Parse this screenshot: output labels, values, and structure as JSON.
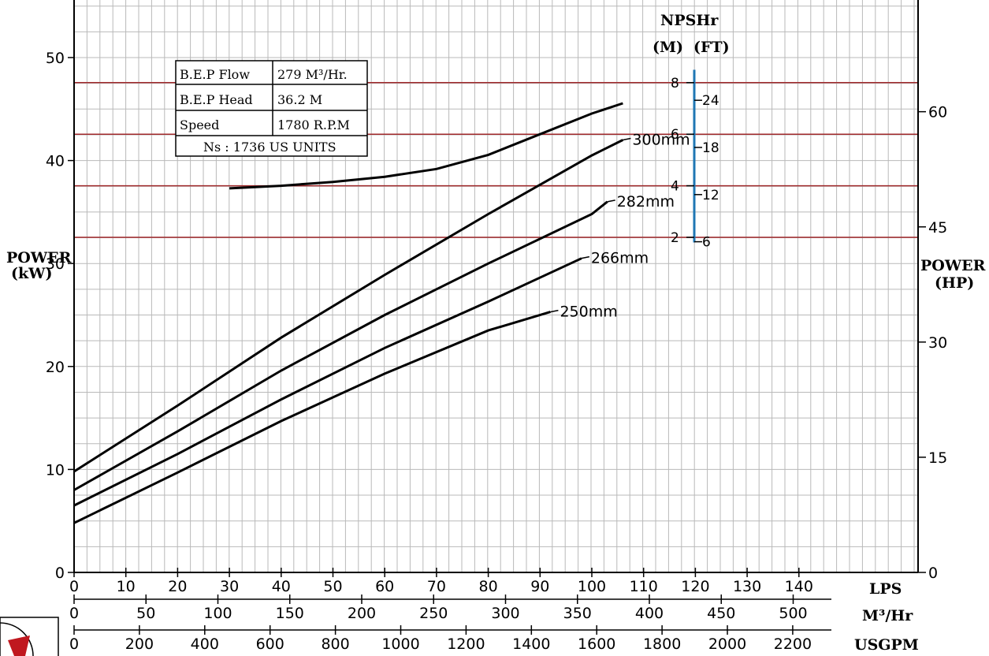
{
  "chart_data": {
    "type": "line",
    "title": "",
    "info_box": {
      "rows": [
        {
          "label": "B.E.P Flow",
          "value": "279 M³/Hr."
        },
        {
          "label": "B.E.P Head",
          "value": "36.2 M"
        },
        {
          "label": "Speed",
          "value": "1780 R.P.M"
        }
      ],
      "footer": "Ns : 1736 US UNITS"
    },
    "npshr_panel": {
      "title": "NPSHr",
      "unit_m": "(M)",
      "unit_ft": "(FT)",
      "m_ticks": [
        2,
        4,
        6,
        8
      ],
      "ft_ticks": [
        6,
        12,
        18,
        24
      ],
      "m_range": [
        1.8,
        8.5
      ],
      "reference_lines_m": [
        2,
        4,
        6,
        8
      ],
      "line_color": "#1f77b4",
      "ref_line_color": "#a0292b"
    },
    "npshr_curve": {
      "name": "",
      "x_lps": [
        30,
        40,
        50,
        60,
        70,
        80,
        90,
        100,
        106
      ],
      "y_m": [
        3.9,
        4.0,
        4.15,
        4.35,
        4.65,
        5.2,
        6.0,
        6.8,
        7.2
      ]
    },
    "power_axis_left": {
      "label_line1": "POWER",
      "label_line2": "(kW)",
      "ticks": [
        0,
        10,
        20,
        30,
        40,
        50
      ],
      "range": [
        0,
        50
      ]
    },
    "power_axis_right": {
      "label_line1": "POWER",
      "label_line2": "(HP)",
      "ticks": [
        0,
        15,
        30,
        45,
        60
      ]
    },
    "x_axes": [
      {
        "label": "LPS",
        "ticks": [
          0,
          10,
          20,
          30,
          40,
          50,
          60,
          70,
          80,
          90,
          100,
          110,
          120,
          130,
          140
        ]
      },
      {
        "label": "M³/Hr",
        "ticks": [
          0,
          50,
          100,
          150,
          200,
          250,
          300,
          350,
          400,
          450,
          500
        ]
      },
      {
        "label": "USGPM",
        "ticks": [
          0,
          200,
          400,
          600,
          800,
          1000,
          1200,
          1400,
          1600,
          1800,
          2000,
          2200
        ]
      }
    ],
    "x_range_lps": [
      0,
      140
    ],
    "grid": true,
    "series": [
      {
        "name": "300mm",
        "x": [
          0,
          20,
          40,
          60,
          80,
          100,
          106
        ],
        "y": [
          9.8,
          16.2,
          22.8,
          28.9,
          34.8,
          40.5,
          42.0
        ]
      },
      {
        "name": "282mm",
        "x": [
          0,
          20,
          40,
          60,
          80,
          100,
          103
        ],
        "y": [
          8.0,
          13.7,
          19.6,
          25.0,
          30.0,
          34.8,
          36.0
        ]
      },
      {
        "name": "266mm",
        "x": [
          0,
          20,
          40,
          60,
          80,
          98
        ],
        "y": [
          6.5,
          11.5,
          16.8,
          21.8,
          26.3,
          30.5
        ]
      },
      {
        "name": "250mm",
        "x": [
          0,
          20,
          40,
          60,
          80,
          92
        ],
        "y": [
          4.8,
          9.7,
          14.7,
          19.3,
          23.5,
          25.3
        ]
      }
    ]
  }
}
